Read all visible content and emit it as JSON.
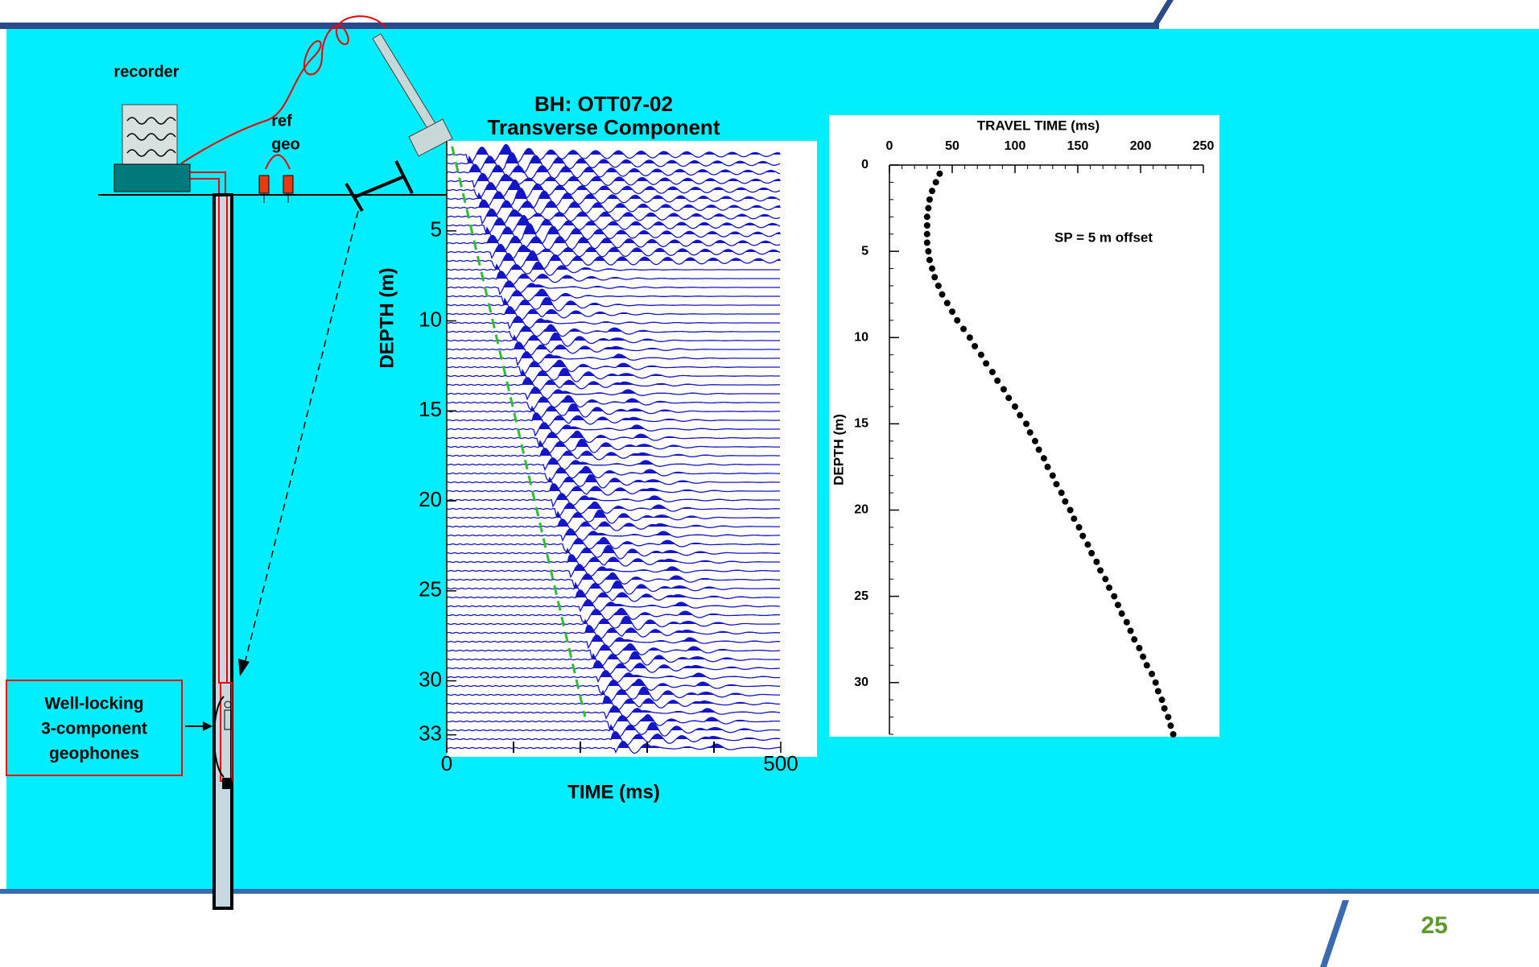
{
  "diagram": {
    "recorder": "recorder",
    "ref_geo": [
      "ref",
      "geo"
    ],
    "geophone_label": [
      "Well-locking",
      "3-component",
      "geophones"
    ]
  },
  "page_number": "25",
  "chart_data": [
    {
      "type": "line",
      "title": [
        "BH: OTT07-02",
        "Transverse Component"
      ],
      "x_label": "TIME (ms)",
      "y_label": "DEPTH (m)",
      "x": [
        8,
        207
      ],
      "series": [
        {
          "color": "#33bb33",
          "values": [
            0.3,
            32
          ]
        }
      ],
      "xlim": [
        0,
        500
      ],
      "xticks": [
        0,
        500
      ],
      "ylim": [
        0,
        34
      ],
      "yticks": [
        5,
        10,
        15,
        20,
        25,
        30,
        33
      ],
      "y_inverted": true,
      "trace_color": "#1414c8"
    },
    {
      "type": "scatter",
      "x_label": "TRAVEL TIME (ms)",
      "y_label": "DEPTH (m)",
      "annotation": "SP = 5 m offset",
      "x": [
        40,
        37,
        34,
        32,
        31,
        30,
        30,
        30,
        30,
        31,
        32,
        34,
        36,
        39,
        42,
        46,
        50,
        54,
        59,
        64,
        68,
        73,
        77,
        82,
        86,
        91,
        95,
        100,
        104,
        109,
        112,
        116,
        119,
        123,
        126,
        130,
        133,
        137,
        140,
        144,
        147,
        151,
        154,
        158,
        161,
        165,
        168,
        172,
        175,
        179,
        182,
        185,
        189,
        192,
        195,
        199,
        202,
        205,
        209,
        212,
        214,
        217,
        219,
        222,
        224,
        226
      ],
      "series": [
        {
          "color": "#000000",
          "values": [
            0.5,
            1,
            1.5,
            2,
            2.5,
            3,
            3.5,
            4,
            4.5,
            5,
            5.5,
            6,
            6.5,
            7,
            7.5,
            8,
            8.5,
            9,
            9.5,
            10,
            10.5,
            11,
            11.5,
            12,
            12.5,
            13,
            13.5,
            14,
            14.5,
            15,
            15.5,
            16,
            16.5,
            17,
            17.5,
            18,
            18.5,
            19,
            19.5,
            20,
            20.5,
            21,
            21.5,
            22,
            22.5,
            23,
            23.5,
            24,
            24.5,
            25,
            25.5,
            26,
            26.5,
            27,
            27.5,
            28,
            28.5,
            29,
            29.5,
            30,
            30.5,
            31,
            31.5,
            32,
            32.5,
            33
          ]
        }
      ],
      "xlim": [
        0,
        250
      ],
      "xticks": [
        0,
        50,
        100,
        150,
        200,
        250
      ],
      "ylim": [
        0,
        33
      ],
      "yticks": [
        0,
        5,
        10,
        15,
        20,
        25,
        30
      ],
      "y_inverted": true
    }
  ]
}
